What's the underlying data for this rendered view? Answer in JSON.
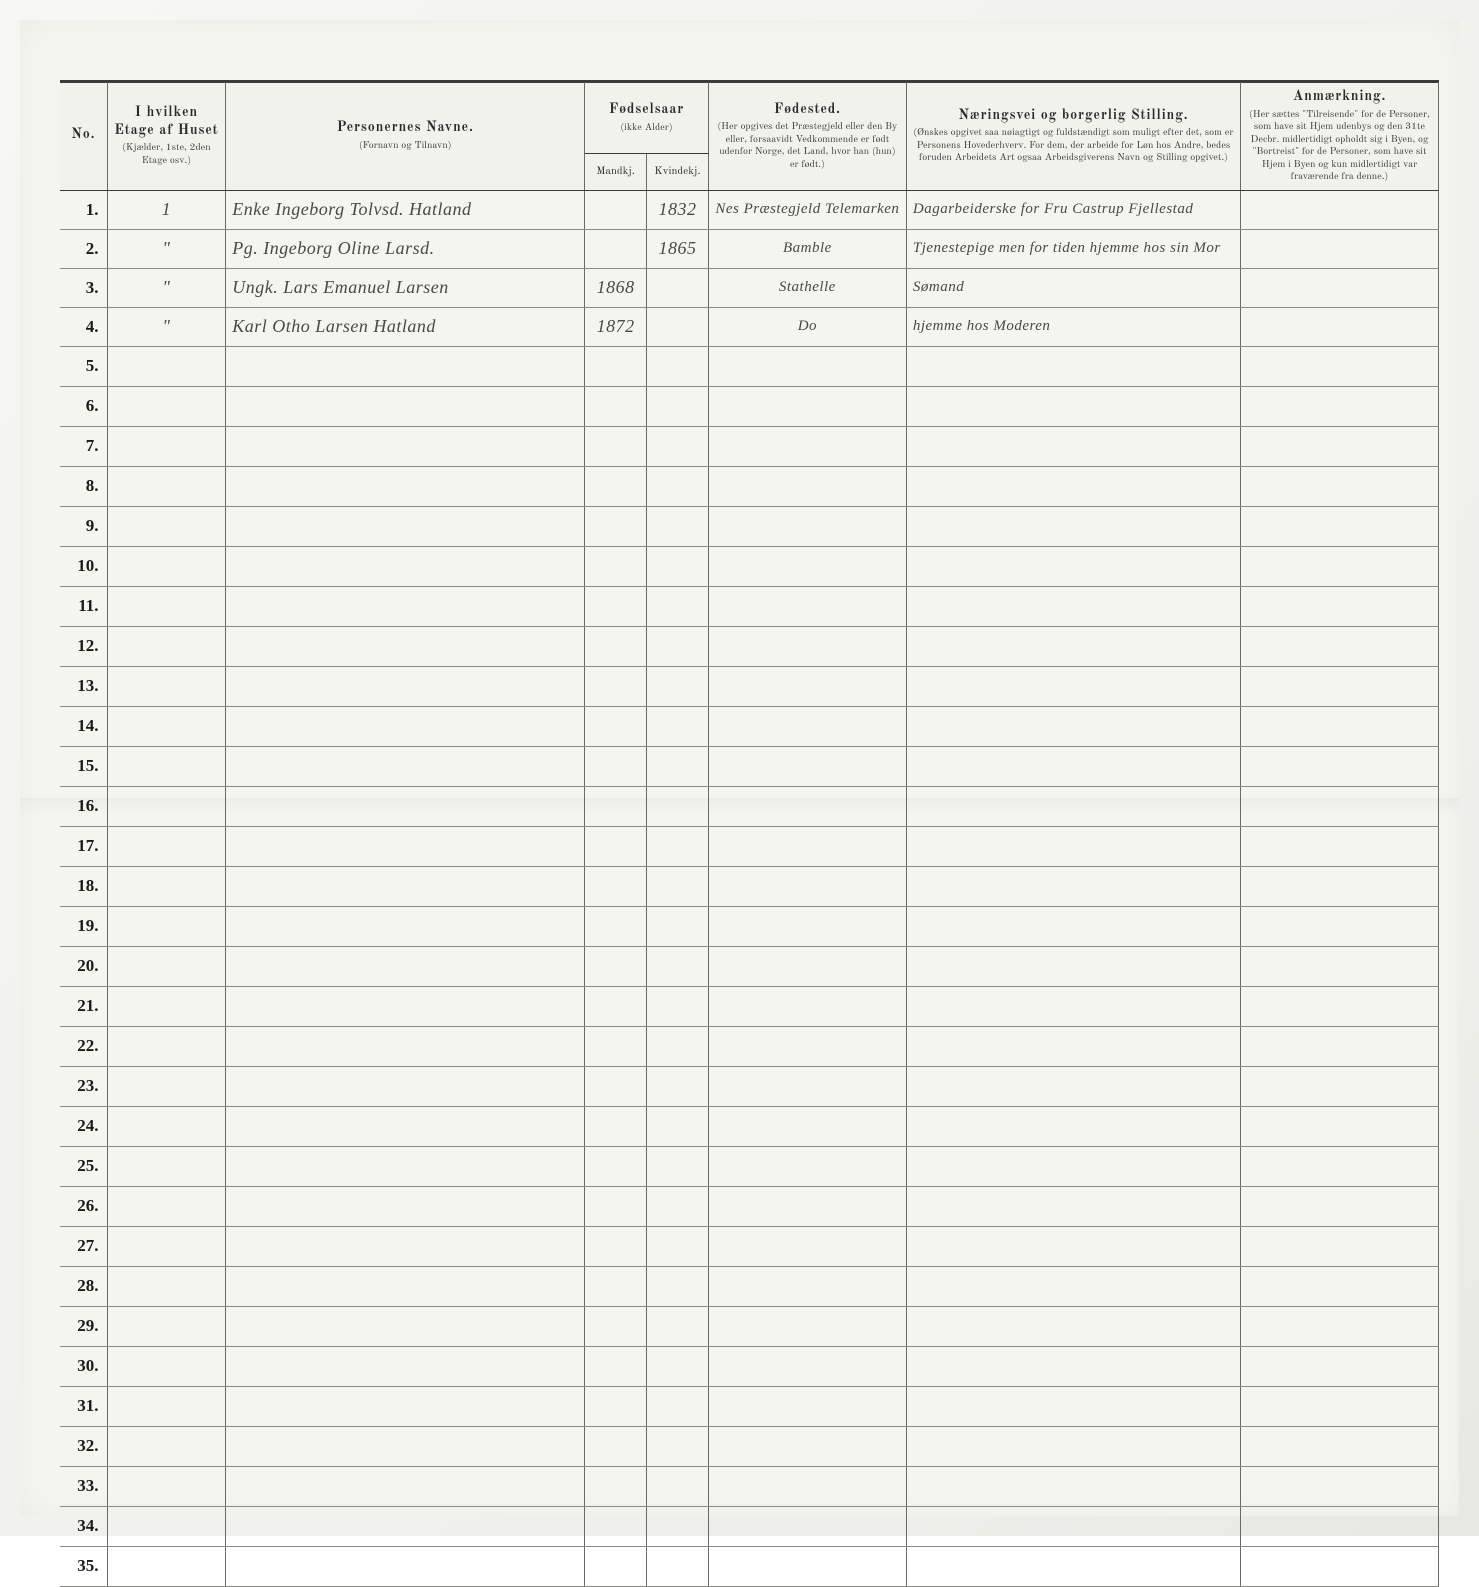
{
  "colors": {
    "paper": "#f5f5f0",
    "rule": "#6a6a68",
    "heavy_rule": "#3a3a3a",
    "print_text": "#2b2b2b",
    "hand_text": "#4a4a44"
  },
  "columns": {
    "no": {
      "title": "No."
    },
    "etage": {
      "title": "I hvilken Etage af Huset",
      "sub": "(Kjælder, 1ste, 2den Etage osv.)"
    },
    "navn": {
      "title": "Personernes Navne.",
      "sub": "(Fornavn og Tilnavn)"
    },
    "fodselsaar": {
      "title": "Fødselsaar",
      "sub": "(ikke Alder)",
      "mandkj": "Mandkj.",
      "kvindkj": "Kvindekj."
    },
    "fodested": {
      "title": "Fødested.",
      "sub": "(Her opgives det Præstegjeld eller den By eller, forsaavidt Vedkommende er født udenfor Norge, det Land, hvor han (hun) er født.)"
    },
    "stilling": {
      "title": "Næringsvei og borgerlig Stilling.",
      "sub": "(Ønskes opgivet saa nøiagtigt og fuldstændigt som muligt efter det, som er Personens Hovederhverv. For dem, der arbeide for Løn hos Andre, bedes foruden Arbeidets Art ogsaa Arbeidsgiverens Navn og Stilling opgivet.)"
    },
    "anm": {
      "title": "Anmærkning.",
      "sub": "(Her sættes \"Tilreisende\" for de Personer, som have sit Hjem udenbys og den 31te Decbr. midlertidigt opholdt sig i Byen, og \"Bortreist\" for de Personer, som have sit Hjem i Byen og kun midlertidigt var fraværende fra denne.)"
    }
  },
  "total_rows": 35,
  "rows": [
    {
      "no": "1",
      "etage": "1",
      "navn": "Enke Ingeborg Tolvsd. Hatland",
      "mand": "",
      "kvind": "1832",
      "fsted": "Nes Præstegjeld Telemarken",
      "still": "Dagarbeiderske for Fru Castrup Fjellestad",
      "anm": ""
    },
    {
      "no": "2",
      "etage": "\"",
      "navn": "Pg. Ingeborg Oline Larsd.",
      "mand": "",
      "kvind": "1865",
      "fsted": "Bamble",
      "still": "Tjenestepige men for tiden hjemme hos sin Mor",
      "anm": ""
    },
    {
      "no": "3",
      "etage": "\"",
      "navn": "Ungk. Lars Emanuel Larsen",
      "mand": "1868",
      "kvind": "",
      "fsted": "Stathelle",
      "still": "Sømand",
      "anm": ""
    },
    {
      "no": "4",
      "etage": "\"",
      "navn": "Karl Otho Larsen Hatland",
      "mand": "1872",
      "kvind": "",
      "fsted": "Do",
      "still": "hjemme hos Moderen",
      "anm": ""
    }
  ]
}
